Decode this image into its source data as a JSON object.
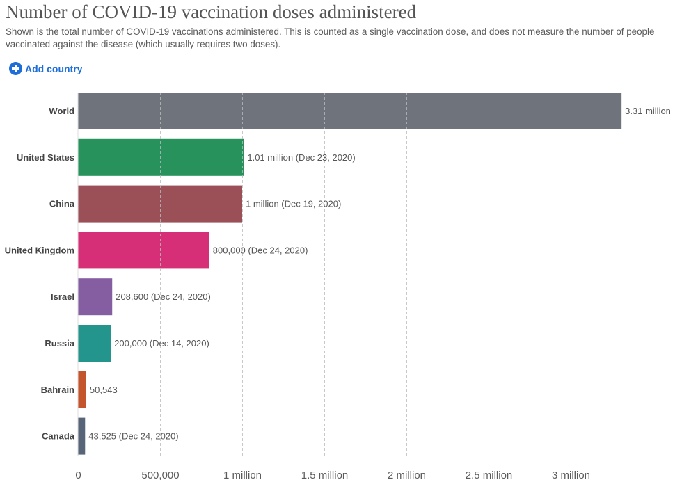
{
  "header": {
    "title": "Number of COVID-19 vaccination doses administered",
    "subtitle": "Shown is the total number of COVID-19 vaccinations administered. This is counted as a single vaccination dose, and does not measure the number of people vaccinated against the disease (which usually requires two doses).",
    "add_country_label": "Add country",
    "add_country_icon": "plus-circle-icon",
    "accent_color": "#1d6ed8"
  },
  "chart_data": {
    "type": "bar",
    "orientation": "horizontal",
    "title": "Number of COVID-19 vaccination doses administered",
    "xlabel": "",
    "ylabel": "",
    "xlim": [
      0,
      3310000
    ],
    "grid": true,
    "grid_style": "dashed vertical",
    "categories": [
      "World",
      "United States",
      "China",
      "United Kingdom",
      "Israel",
      "Russia",
      "Bahrain",
      "Canada"
    ],
    "values": [
      3310000,
      1010000,
      1000000,
      800000,
      208600,
      200000,
      50543,
      43525
    ],
    "value_labels": [
      "3.31 million",
      "1.01 million (Dec 23, 2020)",
      "1 million (Dec 19, 2020)",
      "800,000 (Dec 24, 2020)",
      "208,600 (Dec 24, 2020)",
      "200,000 (Dec 14, 2020)",
      "50,543",
      "43,525 (Dec 24, 2020)"
    ],
    "colors": [
      "#6f737b",
      "#28925c",
      "#9a5056",
      "#d62f78",
      "#845ea0",
      "#23958c",
      "#c3542c",
      "#586579"
    ],
    "x_ticks": [
      0,
      500000,
      1000000,
      1500000,
      2000000,
      2500000,
      3000000
    ],
    "x_tick_labels": [
      "0",
      "500,000",
      "1 million",
      "1.5 million",
      "2 million",
      "2.5 million",
      "3 million"
    ]
  }
}
